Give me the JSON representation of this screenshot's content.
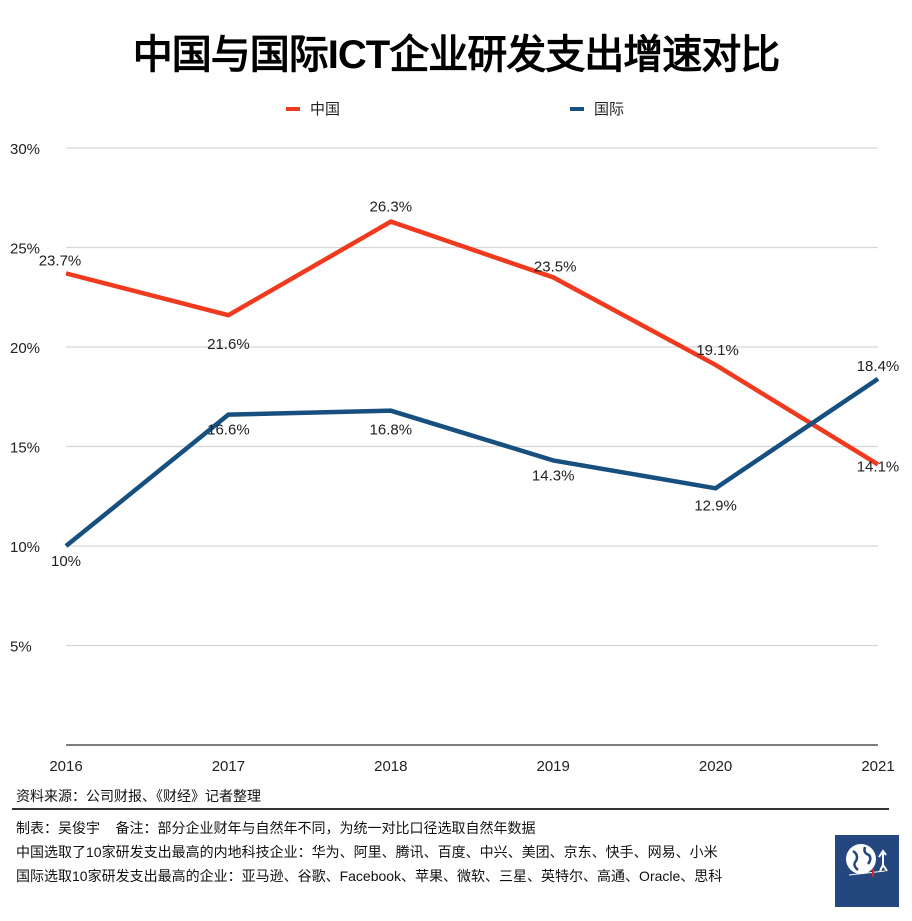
{
  "chart_data": {
    "type": "line",
    "title": "中国与国际ICT企业研发支出增速对比",
    "categories": [
      "2016",
      "2017",
      "2018",
      "2019",
      "2020",
      "2021"
    ],
    "series": [
      {
        "name": "中国",
        "color": "#f03a1f",
        "values": [
          23.7,
          21.6,
          26.3,
          23.5,
          19.1,
          14.1
        ],
        "labels": [
          "23.7%",
          "21.6%",
          "26.3%",
          "23.5%",
          "19.1%",
          "14.1%"
        ]
      },
      {
        "name": "国际",
        "color": "#17507f",
        "values": [
          10,
          16.6,
          16.8,
          14.3,
          12.9,
          18.4
        ],
        "labels": [
          "10%",
          "16.6%",
          "16.8%",
          "14.3%",
          "12.9%",
          "18.4%"
        ]
      }
    ],
    "yticks": [
      "5%",
      "10%",
      "15%",
      "20%",
      "25%",
      "30%"
    ],
    "ytick_values": [
      5,
      10,
      15,
      20,
      25,
      30
    ],
    "ylim": [
      0,
      30
    ],
    "grid": true,
    "legend": "top-center",
    "xlabel": "",
    "ylabel": ""
  },
  "footer": {
    "source": "资料来源：公司财报、《财经》记者整理",
    "author_note": "制表：吴俊宇    备注：部分企业财年与自然年不同，为统一对比口径选取自然年数据",
    "china_note": "中国选取了10家研发支出最高的内地科技企业：华为、阿里、腾讯、百度、中兴、美团、京东、快手、网易、小米",
    "intl_note": "国际选取10家研发支出最高的企业：亚马逊、谷歌、Facebook、苹果、微软、三星、英特尔、高通、Oracle、思科"
  },
  "logo": {
    "text": "财经十一人"
  }
}
